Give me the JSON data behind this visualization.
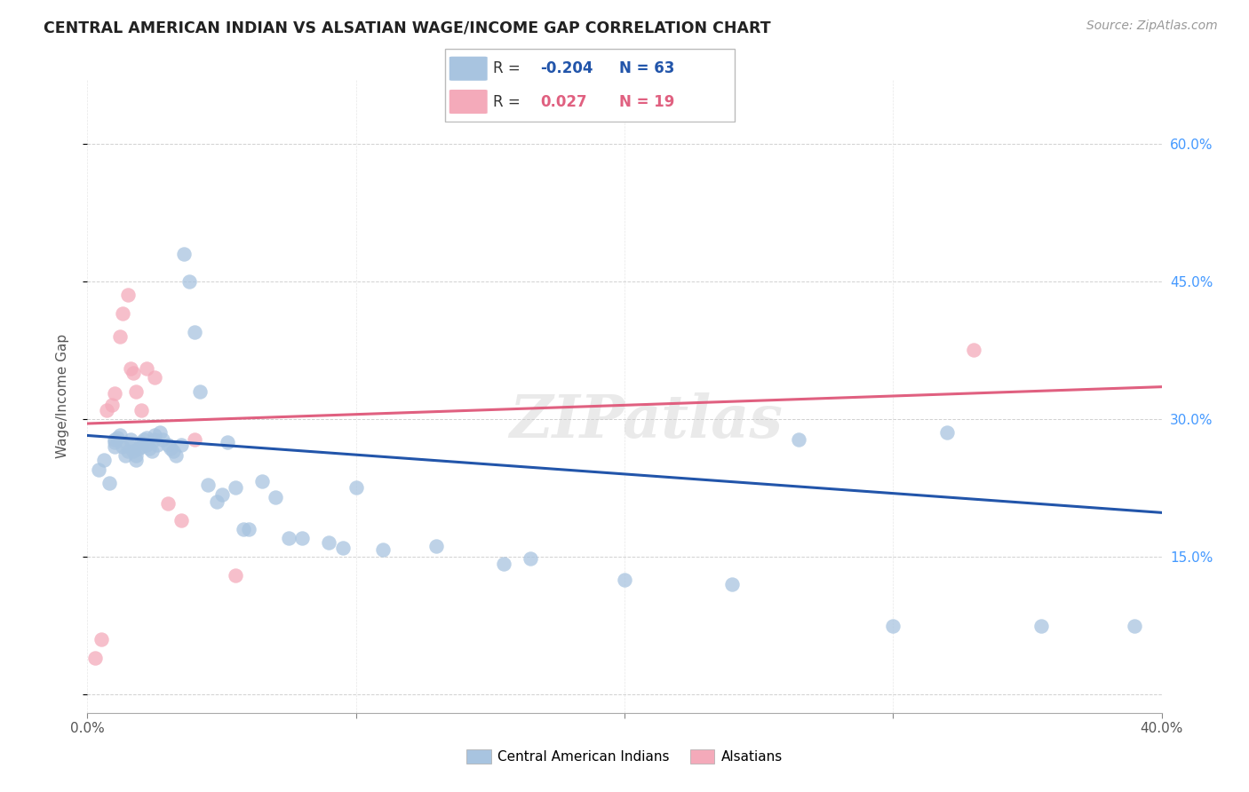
{
  "title": "CENTRAL AMERICAN INDIAN VS ALSATIAN WAGE/INCOME GAP CORRELATION CHART",
  "source": "Source: ZipAtlas.com",
  "ylabel": "Wage/Income Gap",
  "xlim": [
    0.0,
    0.4
  ],
  "ylim": [
    -0.02,
    0.67
  ],
  "xticks": [
    0.0,
    0.1,
    0.2,
    0.3,
    0.4
  ],
  "xtick_labels": [
    "0.0%",
    "",
    "",
    "",
    "40.0%"
  ],
  "yticks_right": [
    0.0,
    0.15,
    0.3,
    0.45,
    0.6
  ],
  "ytick_labels_right": [
    "",
    "15.0%",
    "30.0%",
    "45.0%",
    "60.0%"
  ],
  "blue_R": "-0.204",
  "blue_N": "63",
  "pink_R": "0.027",
  "pink_N": "19",
  "legend_label_blue": "Central American Indians",
  "legend_label_pink": "Alsatians",
  "blue_color": "#A8C4E0",
  "pink_color": "#F4AABA",
  "blue_line_color": "#2255AA",
  "pink_line_color": "#E06080",
  "watermark": "ZIPatlas",
  "blue_points_x": [
    0.004,
    0.006,
    0.008,
    0.01,
    0.01,
    0.01,
    0.011,
    0.012,
    0.013,
    0.014,
    0.015,
    0.015,
    0.016,
    0.017,
    0.018,
    0.018,
    0.019,
    0.02,
    0.02,
    0.021,
    0.022,
    0.022,
    0.023,
    0.024,
    0.025,
    0.025,
    0.026,
    0.027,
    0.028,
    0.03,
    0.031,
    0.032,
    0.033,
    0.035,
    0.036,
    0.038,
    0.04,
    0.042,
    0.045,
    0.048,
    0.05,
    0.052,
    0.055,
    0.058,
    0.06,
    0.065,
    0.07,
    0.075,
    0.08,
    0.09,
    0.095,
    0.1,
    0.11,
    0.13,
    0.155,
    0.165,
    0.2,
    0.24,
    0.265,
    0.3,
    0.32,
    0.355,
    0.39
  ],
  "blue_points_y": [
    0.245,
    0.255,
    0.23,
    0.27,
    0.275,
    0.278,
    0.28,
    0.282,
    0.27,
    0.26,
    0.265,
    0.272,
    0.278,
    0.265,
    0.26,
    0.255,
    0.268,
    0.275,
    0.27,
    0.278,
    0.28,
    0.272,
    0.268,
    0.265,
    0.282,
    0.278,
    0.272,
    0.285,
    0.278,
    0.272,
    0.268,
    0.265,
    0.26,
    0.272,
    0.48,
    0.45,
    0.395,
    0.33,
    0.228,
    0.21,
    0.218,
    0.275,
    0.225,
    0.18,
    0.18,
    0.232,
    0.215,
    0.17,
    0.17,
    0.165,
    0.16,
    0.225,
    0.158,
    0.162,
    0.142,
    0.148,
    0.125,
    0.12,
    0.278,
    0.075,
    0.285,
    0.075,
    0.075
  ],
  "pink_points_x": [
    0.003,
    0.005,
    0.007,
    0.009,
    0.01,
    0.012,
    0.013,
    0.015,
    0.016,
    0.017,
    0.018,
    0.02,
    0.022,
    0.025,
    0.03,
    0.035,
    0.04,
    0.055,
    0.33
  ],
  "pink_points_y": [
    0.04,
    0.06,
    0.31,
    0.315,
    0.328,
    0.39,
    0.415,
    0.435,
    0.355,
    0.35,
    0.33,
    0.31,
    0.355,
    0.345,
    0.208,
    0.19,
    0.278,
    0.13,
    0.375
  ],
  "blue_line_x0": 0.0,
  "blue_line_x1": 0.4,
  "blue_line_y0": 0.282,
  "blue_line_y1": 0.198,
  "pink_line_x0": 0.0,
  "pink_line_x1": 0.4,
  "pink_line_y0": 0.295,
  "pink_line_y1": 0.335
}
